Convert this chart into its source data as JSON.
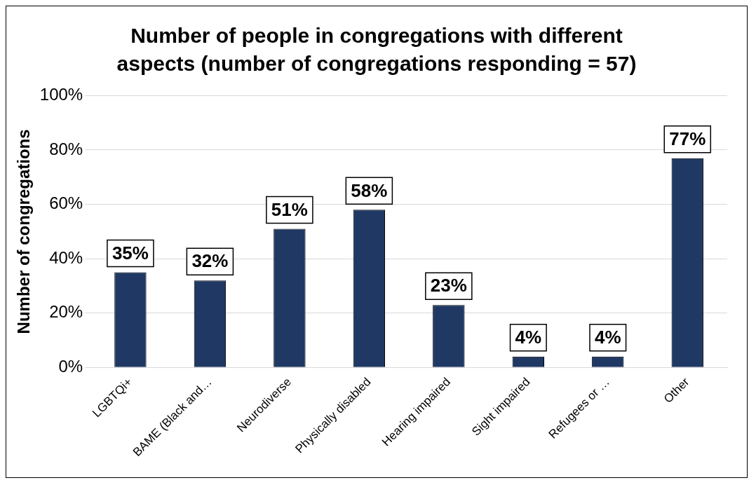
{
  "chart_data": {
    "type": "bar",
    "title": "Number of people in congregations with different aspects (number of congregations responding = 57)",
    "ylabel": "Number of congregations",
    "categories": [
      "LGBTQi+",
      "BAME (Black and…",
      "Neurodiverse",
      "Physically disabled",
      "Hearing impaired",
      "Sight impaired",
      "Refugees or …",
      "Other"
    ],
    "values": [
      35,
      32,
      51,
      58,
      23,
      4,
      4,
      77
    ],
    "value_labels": [
      "35%",
      "32%",
      "51%",
      "58%",
      "23%",
      "4%",
      "4%",
      "77%"
    ],
    "color": "#1f3864",
    "ylim": [
      0,
      100
    ],
    "yticks": [
      {
        "value": 0,
        "label": "0%"
      },
      {
        "value": 20,
        "label": "20%"
      },
      {
        "value": 40,
        "label": "40%"
      },
      {
        "value": 60,
        "label": "60%"
      },
      {
        "value": 80,
        "label": "80%"
      },
      {
        "value": 100,
        "label": "100%"
      }
    ],
    "grid": "y",
    "legend": false
  }
}
